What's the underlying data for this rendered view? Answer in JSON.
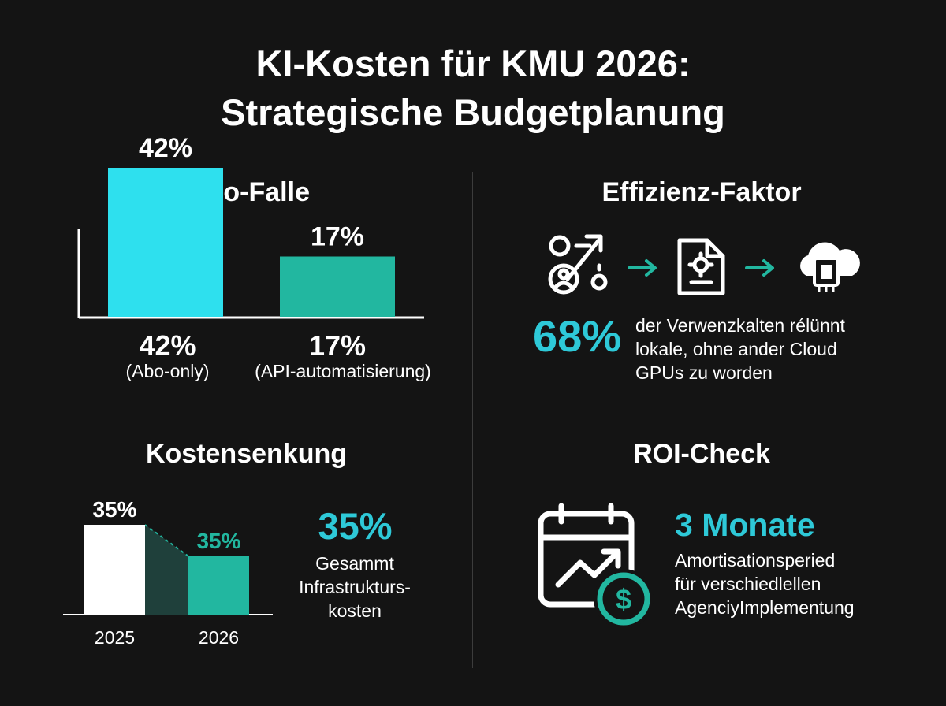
{
  "title": {
    "line1": "KI-Kosten für KMU 2026:",
    "line2": "Strategische Budgetplanung"
  },
  "colors": {
    "background": "#141414",
    "cyan": "#2ee0ee",
    "teal": "#22b7a0",
    "white": "#ffffff",
    "dark_teal": "#1f403b",
    "accent_text": "#2ec9d8"
  },
  "panel_abo": {
    "title": "Die Abo-Falle",
    "bar_labels": [
      {
        "value": "42%",
        "caption": "(Abo-only)"
      },
      {
        "value": "17%",
        "caption": "(API-automatisierung)"
      }
    ]
  },
  "panel_effizienz": {
    "title": "Effizienz-Faktor",
    "icons": [
      "workflow-icon",
      "arrow-right-icon",
      "settings-document-icon",
      "arrow-right-icon",
      "cloud-chip-icon"
    ],
    "stat": "68%",
    "lines": [
      "der Verwenzkalten rélünnt",
      "lokale, ohne ander Cloud",
      "GPUs zu worden"
    ]
  },
  "panel_kosten": {
    "title": "Kostensenkung",
    "stat": "35%",
    "lines": [
      "Gesammt",
      "Infrastrukturs-",
      "kosten"
    ]
  },
  "panel_roi": {
    "title": "ROI-Check",
    "icons": [
      "calendar-growth-icon",
      "dollar-coin-icon"
    ],
    "stat": "3 Monate",
    "lines": [
      "Amortisationsperied",
      "für verschiedlellen",
      "AgenciyImplementung"
    ]
  },
  "chart_data": [
    {
      "type": "bar",
      "title": "Die Abo-Falle",
      "categories": [
        "(Abo-only)",
        "(API-automatisierung)"
      ],
      "values": [
        42,
        17
      ],
      "data_labels": [
        "42%",
        "17%"
      ],
      "ylim": [
        0,
        50
      ],
      "colors": [
        "#2ee0ee",
        "#22b7a0"
      ],
      "grid": false,
      "legend": "none"
    },
    {
      "type": "bar",
      "title": "Kostensenkung",
      "categories": [
        "2025",
        "2026"
      ],
      "values": [
        100,
        65
      ],
      "data_labels": [
        "35%",
        "35%"
      ],
      "ylim": [
        0,
        100
      ],
      "colors": [
        "#ffffff",
        "#22b7a0"
      ],
      "grid": false,
      "legend": "none"
    }
  ]
}
